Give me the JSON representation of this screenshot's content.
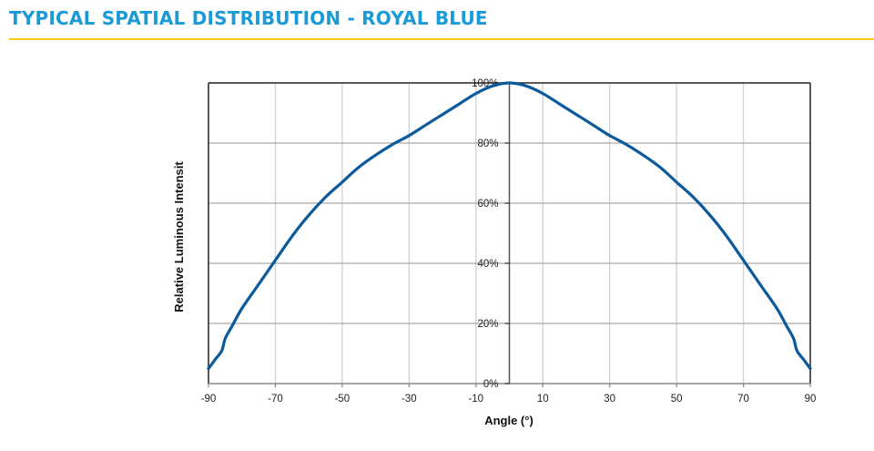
{
  "header": {
    "title": "TYPICAL SPATIAL DISTRIBUTION - ROYAL BLUE",
    "title_color": "#1b9ad8",
    "rule_color": "#f7cb1a"
  },
  "chart_data": {
    "type": "line",
    "title": "TYPICAL SPATIAL DISTRIBUTION - ROYAL BLUE",
    "xlabel": "Angle (°)",
    "ylabel": "Relative Luminous Intensit",
    "xlim": [
      -90,
      90
    ],
    "ylim": [
      0,
      100
    ],
    "grid": true,
    "x_ticks": [
      -90,
      -70,
      -50,
      -30,
      -10,
      10,
      30,
      50,
      70,
      90
    ],
    "x_tick_labels": [
      "-90",
      "-70",
      "-50",
      "-30",
      "-10",
      "10",
      "30",
      "50",
      "70",
      "90"
    ],
    "y_ticks": [
      0,
      20,
      40,
      60,
      80,
      100
    ],
    "y_tick_labels": [
      "0%",
      "20%",
      "40%",
      "60%",
      "80%",
      "100%"
    ],
    "series": [
      {
        "name": "Royal Blue",
        "color": "#0a5a9c",
        "x": [
          -90,
          -88,
          -86,
          -85,
          -83,
          -80,
          -75,
          -70,
          -65,
          -60,
          -55,
          -50,
          -45,
          -40,
          -35,
          -30,
          -25,
          -20,
          -15,
          -10,
          -5,
          0,
          5,
          10,
          15,
          20,
          25,
          30,
          35,
          40,
          45,
          50,
          55,
          60,
          65,
          70,
          75,
          80,
          83,
          85,
          86,
          88,
          90
        ],
        "y": [
          5,
          8,
          11,
          15,
          19,
          25,
          33,
          41,
          49,
          56,
          62,
          67,
          72,
          76,
          79.5,
          82.5,
          86,
          89.5,
          93,
          96.5,
          99,
          100,
          99,
          96.5,
          93,
          89.5,
          86,
          82.5,
          79.5,
          76,
          72,
          67,
          62,
          56,
          49,
          41,
          33,
          25,
          19,
          15,
          11,
          8,
          5
        ]
      }
    ]
  }
}
